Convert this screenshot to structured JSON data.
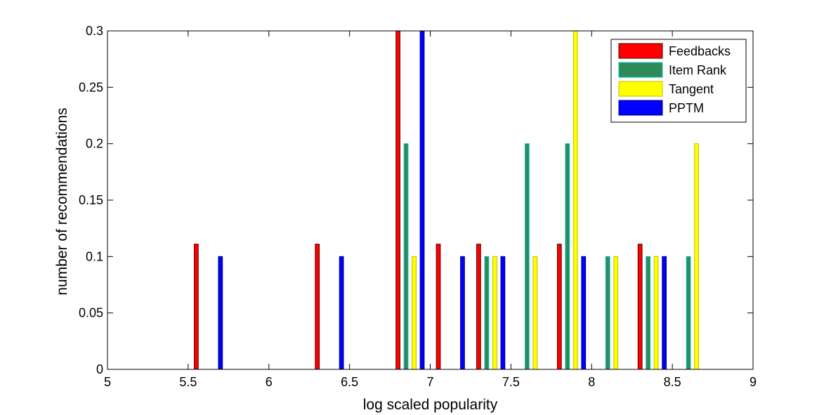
{
  "chart_data": {
    "type": "bar",
    "title": "",
    "xlabel": "log scaled popularity",
    "ylabel": "number of recommendations",
    "xlim": [
      5,
      9
    ],
    "ylim": [
      0,
      0.3
    ],
    "xticks": [
      "5",
      "5.5",
      "6",
      "6.5",
      "7",
      "7.5",
      "8",
      "8.5",
      "9"
    ],
    "yticks": [
      "0",
      "0.05",
      "0.1",
      "0.15",
      "0.2",
      "0.25",
      "0.3"
    ],
    "grid": false,
    "legend_position": "top-right",
    "bin_centers": [
      5.125,
      5.375,
      5.625,
      5.875,
      6.125,
      6.375,
      6.625,
      6.875,
      7.125,
      7.375,
      7.625,
      7.875,
      8.125,
      8.375,
      8.625,
      8.875
    ],
    "series": [
      {
        "name": "Feedbacks",
        "color": "#ff0000",
        "edge": "#4d0000",
        "values": [
          0,
          0,
          0.111,
          0,
          0,
          0.111,
          0,
          0.3,
          0.111,
          0.111,
          0,
          0.111,
          0,
          0.111,
          0,
          0
        ]
      },
      {
        "name": "Item Rank",
        "color": "#2e8b57",
        "edge": "#00bfbf",
        "values": [
          0,
          0,
          0,
          0,
          0,
          0,
          0,
          0.2,
          0,
          0.1,
          0.2,
          0.2,
          0.1,
          0.1,
          0.1,
          0
        ]
      },
      {
        "name": "Tangent",
        "color": "#ffff00",
        "edge": "#bfbf00",
        "values": [
          0,
          0,
          0,
          0,
          0,
          0,
          0,
          0.1,
          0,
          0.1,
          0.1,
          0.3,
          0.1,
          0.1,
          0.2,
          0
        ]
      },
      {
        "name": "PPTM",
        "color": "#0000ff",
        "edge": "#000080",
        "values": [
          0,
          0,
          0.1,
          0,
          0,
          0.1,
          0,
          0.3,
          0.1,
          0.1,
          0,
          0.1,
          0,
          0.1,
          0,
          0
        ]
      }
    ]
  }
}
